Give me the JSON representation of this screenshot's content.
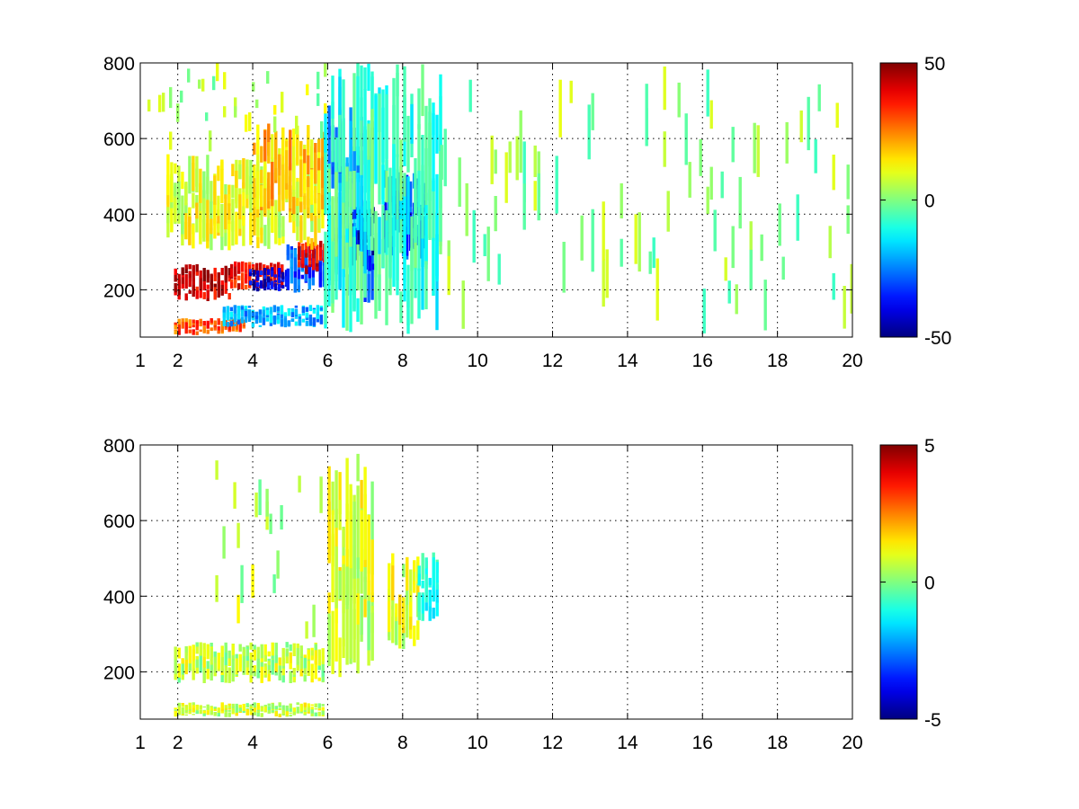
{
  "chart_data": [
    {
      "type": "heatmap",
      "xlim": [
        1,
        20
      ],
      "ylim": [
        75,
        800
      ],
      "x_ticks": [
        1,
        2,
        4,
        6,
        8,
        10,
        12,
        14,
        16,
        18,
        20
      ],
      "x_tick_labels": [
        "1",
        "2",
        "4",
        "6",
        "8",
        "10",
        "12",
        "14",
        "16",
        "18",
        "20"
      ],
      "y_ticks": [
        200,
        400,
        600,
        800
      ],
      "y_tick_labels": [
        "200",
        "400",
        "600",
        "800"
      ],
      "grid": true,
      "colormap": "jet",
      "clim": [
        -50,
        50
      ],
      "colorbar_ticks": [
        -50,
        0,
        50
      ],
      "colorbar_tick_labels": [
        "-50",
        "0",
        "50"
      ],
      "blobs": [
        {
          "x0": 1.9,
          "x1": 3.4,
          "y0": 170,
          "y1": 270,
          "value": 42
        },
        {
          "x0": 3.4,
          "x1": 4.8,
          "y0": 200,
          "y1": 275,
          "value": 36
        },
        {
          "x0": 3.9,
          "x1": 4.9,
          "y0": 195,
          "y1": 260,
          "value": -40
        },
        {
          "x0": 4.9,
          "x1": 5.9,
          "y0": 190,
          "y1": 320,
          "value": -30
        },
        {
          "x0": 5.2,
          "x1": 5.9,
          "y0": 240,
          "y1": 330,
          "value": 38
        },
        {
          "x0": 1.9,
          "x1": 3.8,
          "y0": 80,
          "y1": 125,
          "value": 30
        },
        {
          "x0": 3.2,
          "x1": 5.8,
          "y0": 100,
          "y1": 160,
          "value": -20
        },
        {
          "x0": 1.7,
          "x1": 5.9,
          "y0": 300,
          "y1": 560,
          "value": 10
        },
        {
          "x0": 4.0,
          "x1": 5.9,
          "y0": 380,
          "y1": 640,
          "value": 18
        },
        {
          "x0": 6.0,
          "x1": 7.2,
          "y0": 160,
          "y1": 700,
          "value": -25
        },
        {
          "x0": 6.6,
          "x1": 7.2,
          "y0": 240,
          "y1": 420,
          "value": -42
        },
        {
          "x0": 7.5,
          "x1": 8.6,
          "y0": 280,
          "y1": 520,
          "value": -30
        },
        {
          "x0": 1.0,
          "x1": 5.9,
          "y0": 560,
          "y1": 800,
          "value": 4
        },
        {
          "x0": 5.9,
          "x1": 9.0,
          "y0": 75,
          "y1": 800,
          "value": -8
        },
        {
          "x0": 9.0,
          "x1": 20.0,
          "y0": 75,
          "y1": 800,
          "value": 2
        }
      ]
    },
    {
      "type": "heatmap",
      "xlim": [
        1,
        20
      ],
      "ylim": [
        75,
        800
      ],
      "x_ticks": [
        1,
        2,
        4,
        6,
        8,
        10,
        12,
        14,
        16,
        18,
        20
      ],
      "x_tick_labels": [
        "1",
        "2",
        "4",
        "6",
        "8",
        "10",
        "12",
        "14",
        "16",
        "18",
        "20"
      ],
      "y_ticks": [
        200,
        400,
        600,
        800
      ],
      "y_tick_labels": [
        "200",
        "400",
        "600",
        "800"
      ],
      "grid": true,
      "colormap": "jet",
      "clim": [
        -5,
        5
      ],
      "colorbar_ticks": [
        -5,
        0,
        5
      ],
      "colorbar_tick_labels": [
        "-5",
        "0",
        "5"
      ],
      "blobs": [
        {
          "x0": 1.9,
          "x1": 5.9,
          "y0": 170,
          "y1": 280,
          "value": 0.6
        },
        {
          "x0": 1.9,
          "x1": 5.9,
          "y0": 80,
          "y1": 120,
          "value": 0.7
        },
        {
          "x0": 3.0,
          "x1": 5.9,
          "y0": 280,
          "y1": 760,
          "value": 0.4
        },
        {
          "x0": 6.0,
          "x1": 7.2,
          "y0": 180,
          "y1": 780,
          "value": 0.8
        },
        {
          "x0": 7.6,
          "x1": 8.4,
          "y0": 260,
          "y1": 520,
          "value": 1.0
        },
        {
          "x0": 8.4,
          "x1": 8.9,
          "y0": 330,
          "y1": 520,
          "value": -0.8
        }
      ]
    }
  ]
}
